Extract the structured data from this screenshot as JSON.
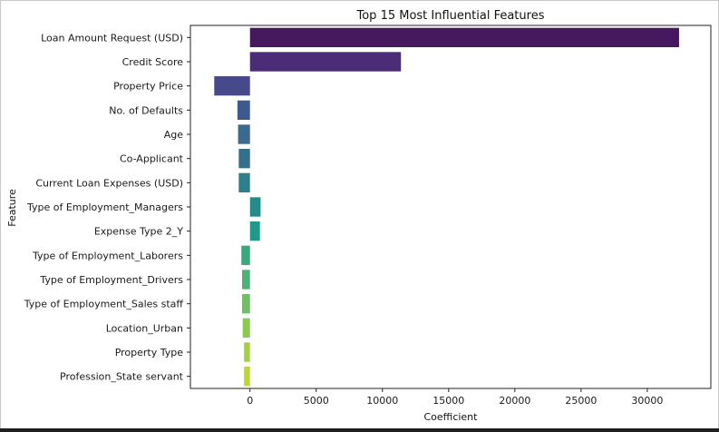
{
  "chart_data": {
    "type": "bar",
    "orientation": "horizontal",
    "title": "Top 15 Most Influential Features",
    "xlabel": "Coefficient",
    "ylabel": "Feature",
    "xlim": [
      -4500,
      34800
    ],
    "xticks": [
      0,
      5000,
      10000,
      15000,
      20000,
      25000,
      30000
    ],
    "grid": false,
    "legend": "none",
    "categories": [
      "Loan Amount Request (USD)",
      "Credit Score",
      "Property Price",
      "No. of Defaults",
      "Age",
      "Co-Applicant",
      "Current Loan Expenses (USD)",
      "Type of Employment_Managers",
      "Expense Type 2_Y",
      "Type of Employment_Laborers",
      "Type of Employment_Drivers",
      "Type of Employment_Sales staff",
      "Location_Urban",
      "Property Type",
      "Profession_State servant"
    ],
    "values": [
      32400,
      11400,
      -2700,
      -950,
      -900,
      -850,
      -850,
      800,
      750,
      -650,
      -600,
      -600,
      -550,
      -450,
      -450
    ],
    "colors": [
      "#46185e",
      "#4b2d77",
      "#464a8a",
      "#3e5a8c",
      "#3a6a8d",
      "#346f8d",
      "#2e7e8c",
      "#238c89",
      "#21998a",
      "#3aa77e",
      "#4cb276",
      "#6ec066",
      "#8cc94f",
      "#a6d13e",
      "#c2d630"
    ]
  }
}
